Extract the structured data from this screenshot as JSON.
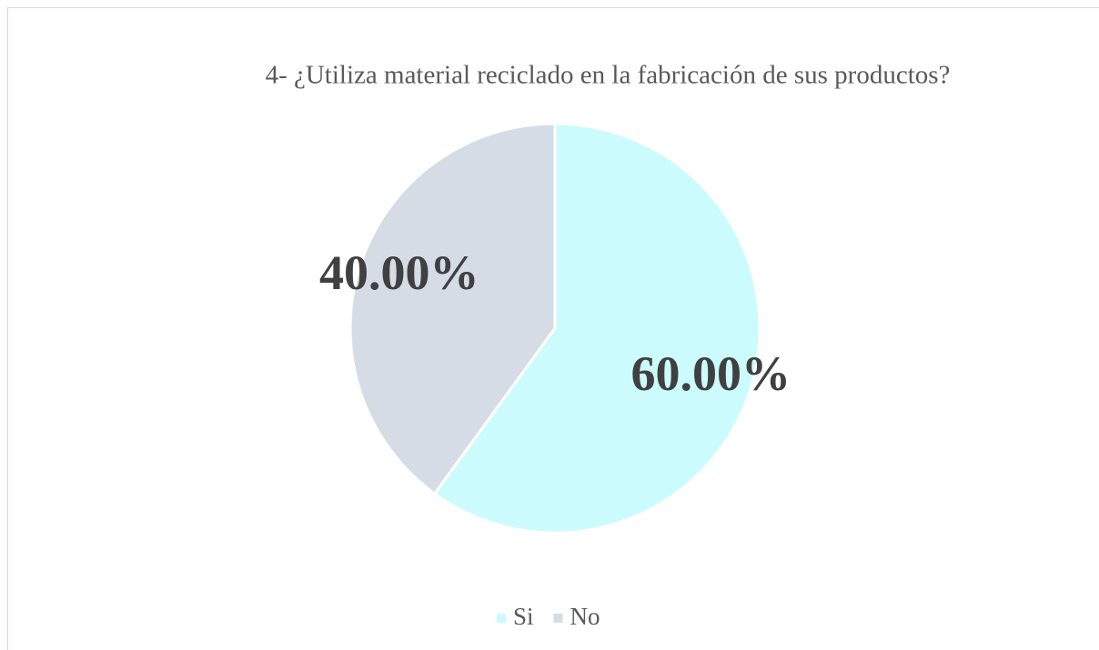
{
  "chart_data": {
    "type": "pie",
    "title": "4- ¿Utiliza material reciclado en la fabricación de sus productos?",
    "categories": [
      "Si",
      "No"
    ],
    "values": [
      60,
      40
    ],
    "value_labels": [
      "60.00%",
      "40.00%"
    ],
    "colors": [
      "#ccfbfe",
      "#d6dce5"
    ],
    "legend": "bottom"
  }
}
